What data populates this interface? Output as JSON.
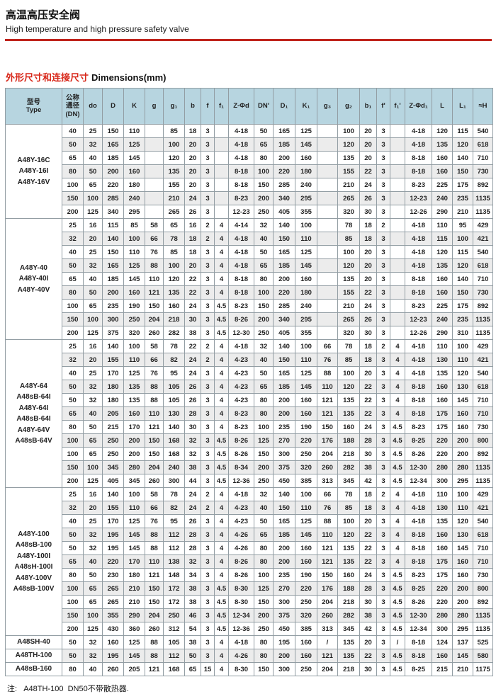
{
  "page": {
    "title_zh": "高温高压安全阀",
    "title_en": "High temperature and high pressure safety valve",
    "section_title_zh": "外形尺寸和连接尺寸",
    "section_title_en": "Dimensions(mm)",
    "footnote": "注:   A48TH-100  DN50不带散热器."
  },
  "colors": {
    "accent_red": "#c0241c",
    "section_red": "#d8281a",
    "header_bg": "#b7d5e0",
    "row_alt_bg": "#ececec",
    "border": "#929da3"
  },
  "table": {
    "headers": [
      "型号\nType",
      "公称\n通径\n(DN)",
      "do",
      "D",
      "K",
      "g",
      "g₁",
      "b",
      "f",
      "f₁",
      "Z-Φd",
      "DN'",
      "D₁",
      "K₁",
      "g₃",
      "g₂",
      "b₁",
      "f'",
      "f₁'",
      "Z-Φd₁",
      "L",
      "L₁",
      "≈H"
    ],
    "groups": [
      {
        "type_lines": [
          "A48Y-16C",
          "A48Y-16I",
          "A48Y-16V"
        ],
        "rows": [
          [
            "40",
            "25",
            "150",
            "110",
            "",
            "85",
            "18",
            "3",
            "",
            "4-18",
            "50",
            "165",
            "125",
            "",
            "100",
            "20",
            "3",
            "",
            "4-18",
            "120",
            "115",
            "540"
          ],
          [
            "50",
            "32",
            "165",
            "125",
            "",
            "100",
            "20",
            "3",
            "",
            "4-18",
            "65",
            "185",
            "145",
            "",
            "120",
            "20",
            "3",
            "",
            "4-18",
            "135",
            "120",
            "618"
          ],
          [
            "65",
            "40",
            "185",
            "145",
            "",
            "120",
            "20",
            "3",
            "",
            "4-18",
            "80",
            "200",
            "160",
            "",
            "135",
            "20",
            "3",
            "",
            "8-18",
            "160",
            "140",
            "710"
          ],
          [
            "80",
            "50",
            "200",
            "160",
            "",
            "135",
            "20",
            "3",
            "",
            "8-18",
            "100",
            "220",
            "180",
            "",
            "155",
            "22",
            "3",
            "",
            "8-18",
            "160",
            "150",
            "730"
          ],
          [
            "100",
            "65",
            "220",
            "180",
            "",
            "155",
            "20",
            "3",
            "",
            "8-18",
            "150",
            "285",
            "240",
            "",
            "210",
            "24",
            "3",
            "",
            "8-23",
            "225",
            "175",
            "892"
          ],
          [
            "150",
            "100",
            "285",
            "240",
            "",
            "210",
            "24",
            "3",
            "",
            "8-23",
            "200",
            "340",
            "295",
            "",
            "265",
            "26",
            "3",
            "",
            "12-23",
            "240",
            "235",
            "1135"
          ],
          [
            "200",
            "125",
            "340",
            "295",
            "",
            "265",
            "26",
            "3",
            "",
            "12-23",
            "250",
            "405",
            "355",
            "",
            "320",
            "30",
            "3",
            "",
            "12-26",
            "290",
            "210",
            "1135"
          ]
        ]
      },
      {
        "type_lines": [
          "A48Y-40",
          "A48Y-40I",
          "A48Y-40V"
        ],
        "rows": [
          [
            "25",
            "16",
            "115",
            "85",
            "58",
            "65",
            "16",
            "2",
            "4",
            "4-14",
            "32",
            "140",
            "100",
            "",
            "78",
            "18",
            "2",
            "",
            "4-18",
            "110",
            "95",
            "429"
          ],
          [
            "32",
            "20",
            "140",
            "100",
            "66",
            "78",
            "18",
            "2",
            "4",
            "4-18",
            "40",
            "150",
            "110",
            "",
            "85",
            "18",
            "3",
            "",
            "4-18",
            "115",
            "100",
            "421"
          ],
          [
            "40",
            "25",
            "150",
            "110",
            "76",
            "85",
            "18",
            "3",
            "4",
            "4-18",
            "50",
            "165",
            "125",
            "",
            "100",
            "20",
            "3",
            "",
            "4-18",
            "120",
            "115",
            "540"
          ],
          [
            "50",
            "32",
            "165",
            "125",
            "88",
            "100",
            "20",
            "3",
            "4",
            "4-18",
            "65",
            "185",
            "145",
            "",
            "120",
            "20",
            "3",
            "",
            "4-18",
            "135",
            "120",
            "618"
          ],
          [
            "65",
            "40",
            "185",
            "145",
            "110",
            "120",
            "22",
            "3",
            "4",
            "8-18",
            "80",
            "200",
            "160",
            "",
            "135",
            "20",
            "3",
            "",
            "8-18",
            "160",
            "140",
            "710"
          ],
          [
            "80",
            "50",
            "200",
            "160",
            "121",
            "135",
            "22",
            "3",
            "4",
            "8-18",
            "100",
            "220",
            "180",
            "",
            "155",
            "22",
            "3",
            "",
            "8-18",
            "160",
            "150",
            "730"
          ],
          [
            "100",
            "65",
            "235",
            "190",
            "150",
            "160",
            "24",
            "3",
            "4.5",
            "8-23",
            "150",
            "285",
            "240",
            "",
            "210",
            "24",
            "3",
            "",
            "8-23",
            "225",
            "175",
            "892"
          ],
          [
            "150",
            "100",
            "300",
            "250",
            "204",
            "218",
            "30",
            "3",
            "4.5",
            "8-26",
            "200",
            "340",
            "295",
            "",
            "265",
            "26",
            "3",
            "",
            "12-23",
            "240",
            "235",
            "1135"
          ],
          [
            "200",
            "125",
            "375",
            "320",
            "260",
            "282",
            "38",
            "3",
            "4.5",
            "12-30",
            "250",
            "405",
            "355",
            "",
            "320",
            "30",
            "3",
            "",
            "12-26",
            "290",
            "310",
            "1135"
          ]
        ]
      },
      {
        "type_lines": [
          "A48Y-64",
          "A48sB-64I",
          "A48Y-64I",
          "A48sB-64I",
          "A48Y-64V",
          "A48sB-64V"
        ],
        "rows": [
          [
            "25",
            "16",
            "140",
            "100",
            "58",
            "78",
            "22",
            "2",
            "4",
            "4-18",
            "32",
            "140",
            "100",
            "66",
            "78",
            "18",
            "2",
            "4",
            "4-18",
            "110",
            "100",
            "429"
          ],
          [
            "32",
            "20",
            "155",
            "110",
            "66",
            "82",
            "24",
            "2",
            "4",
            "4-23",
            "40",
            "150",
            "110",
            "76",
            "85",
            "18",
            "3",
            "4",
            "4-18",
            "130",
            "110",
            "421"
          ],
          [
            "40",
            "25",
            "170",
            "125",
            "76",
            "95",
            "24",
            "3",
            "4",
            "4-23",
            "50",
            "165",
            "125",
            "88",
            "100",
            "20",
            "3",
            "4",
            "4-18",
            "135",
            "120",
            "540"
          ],
          [
            "50",
            "32",
            "180",
            "135",
            "88",
            "105",
            "26",
            "3",
            "4",
            "4-23",
            "65",
            "185",
            "145",
            "110",
            "120",
            "22",
            "3",
            "4",
            "8-18",
            "160",
            "130",
            "618"
          ],
          [
            "50",
            "32",
            "180",
            "135",
            "88",
            "105",
            "26",
            "3",
            "4",
            "4-23",
            "80",
            "200",
            "160",
            "121",
            "135",
            "22",
            "3",
            "4",
            "8-18",
            "160",
            "145",
            "710"
          ],
          [
            "65",
            "40",
            "205",
            "160",
            "110",
            "130",
            "28",
            "3",
            "4",
            "8-23",
            "80",
            "200",
            "160",
            "121",
            "135",
            "22",
            "3",
            "4",
            "8-18",
            "175",
            "160",
            "710"
          ],
          [
            "80",
            "50",
            "215",
            "170",
            "121",
            "140",
            "30",
            "3",
            "4",
            "8-23",
            "100",
            "235",
            "190",
            "150",
            "160",
            "24",
            "3",
            "4.5",
            "8-23",
            "175",
            "160",
            "730"
          ],
          [
            "100",
            "65",
            "250",
            "200",
            "150",
            "168",
            "32",
            "3",
            "4.5",
            "8-26",
            "125",
            "270",
            "220",
            "176",
            "188",
            "28",
            "3",
            "4.5",
            "8-25",
            "220",
            "200",
            "800"
          ],
          [
            "100",
            "65",
            "250",
            "200",
            "150",
            "168",
            "32",
            "3",
            "4.5",
            "8-26",
            "150",
            "300",
            "250",
            "204",
            "218",
            "30",
            "3",
            "4.5",
            "8-26",
            "220",
            "200",
            "892"
          ],
          [
            "150",
            "100",
            "345",
            "280",
            "204",
            "240",
            "38",
            "3",
            "4.5",
            "8-34",
            "200",
            "375",
            "320",
            "260",
            "282",
            "38",
            "3",
            "4.5",
            "12-30",
            "280",
            "280",
            "1135"
          ],
          [
            "200",
            "125",
            "405",
            "345",
            "260",
            "300",
            "44",
            "3",
            "4.5",
            "12-36",
            "250",
            "450",
            "385",
            "313",
            "345",
            "42",
            "3",
            "4.5",
            "12-34",
            "300",
            "295",
            "1135"
          ]
        ]
      },
      {
        "type_lines": [
          "A48Y-100",
          "A48sB-100",
          "A48Y-100I",
          "A48sH-100I",
          "A48Y-100V",
          "A48sB-100V"
        ],
        "rows": [
          [
            "25",
            "16",
            "140",
            "100",
            "58",
            "78",
            "24",
            "2",
            "4",
            "4-18",
            "32",
            "140",
            "100",
            "66",
            "78",
            "18",
            "2",
            "4",
            "4-18",
            "110",
            "100",
            "429"
          ],
          [
            "32",
            "20",
            "155",
            "110",
            "66",
            "82",
            "24",
            "2",
            "4",
            "4-23",
            "40",
            "150",
            "110",
            "76",
            "85",
            "18",
            "3",
            "4",
            "4-18",
            "130",
            "110",
            "421"
          ],
          [
            "40",
            "25",
            "170",
            "125",
            "76",
            "95",
            "26",
            "3",
            "4",
            "4-23",
            "50",
            "165",
            "125",
            "88",
            "100",
            "20",
            "3",
            "4",
            "4-18",
            "135",
            "120",
            "540"
          ],
          [
            "50",
            "32",
            "195",
            "145",
            "88",
            "112",
            "28",
            "3",
            "4",
            "4-26",
            "65",
            "185",
            "145",
            "110",
            "120",
            "22",
            "3",
            "4",
            "8-18",
            "160",
            "130",
            "618"
          ],
          [
            "50",
            "32",
            "195",
            "145",
            "88",
            "112",
            "28",
            "3",
            "4",
            "4-26",
            "80",
            "200",
            "160",
            "121",
            "135",
            "22",
            "3",
            "4",
            "8-18",
            "160",
            "145",
            "710"
          ],
          [
            "65",
            "40",
            "220",
            "170",
            "110",
            "138",
            "32",
            "3",
            "4",
            "8-26",
            "80",
            "200",
            "160",
            "121",
            "135",
            "22",
            "3",
            "4",
            "8-18",
            "175",
            "160",
            "710"
          ],
          [
            "80",
            "50",
            "230",
            "180",
            "121",
            "148",
            "34",
            "3",
            "4",
            "8-26",
            "100",
            "235",
            "190",
            "150",
            "160",
            "24",
            "3",
            "4.5",
            "8-23",
            "175",
            "160",
            "730"
          ],
          [
            "100",
            "65",
            "265",
            "210",
            "150",
            "172",
            "38",
            "3",
            "4.5",
            "8-30",
            "125",
            "270",
            "220",
            "176",
            "188",
            "28",
            "3",
            "4.5",
            "8-25",
            "220",
            "200",
            "800"
          ],
          [
            "100",
            "65",
            "265",
            "210",
            "150",
            "172",
            "38",
            "3",
            "4.5",
            "8-30",
            "150",
            "300",
            "250",
            "204",
            "218",
            "30",
            "3",
            "4.5",
            "8-26",
            "220",
            "200",
            "892"
          ],
          [
            "150",
            "100",
            "355",
            "290",
            "204",
            "250",
            "46",
            "3",
            "4.5",
            "12-34",
            "200",
            "375",
            "320",
            "260",
            "282",
            "38",
            "3",
            "4.5",
            "12-30",
            "280",
            "280",
            "1135"
          ],
          [
            "200",
            "125",
            "430",
            "360",
            "260",
            "312",
            "54",
            "3",
            "4.5",
            "12-36",
            "250",
            "450",
            "385",
            "313",
            "345",
            "42",
            "3",
            "4.5",
            "12-34",
            "300",
            "295",
            "1135"
          ]
        ]
      },
      {
        "type_lines": [
          "A48SH-40"
        ],
        "rows": [
          [
            "50",
            "32",
            "160",
            "125",
            "88",
            "105",
            "38",
            "3",
            "4",
            "4-18",
            "80",
            "195",
            "160",
            "/",
            "135",
            "20",
            "3",
            "/",
            "8-18",
            "124",
            "137",
            "525"
          ]
        ]
      },
      {
        "type_lines": [
          "A48TH-100"
        ],
        "shade_offset": 1,
        "rows": [
          [
            "50",
            "32",
            "195",
            "145",
            "88",
            "112",
            "50",
            "3",
            "4",
            "4-26",
            "80",
            "200",
            "160",
            "121",
            "135",
            "22",
            "3",
            "4.5",
            "8-18",
            "160",
            "145",
            "580"
          ]
        ]
      },
      {
        "type_lines": [
          "A48sB-160"
        ],
        "rows": [
          [
            "80",
            "40",
            "260",
            "205",
            "121",
            "168",
            "65",
            "15",
            "4",
            "8-30",
            "150",
            "300",
            "250",
            "204",
            "218",
            "30",
            "3",
            "4.5",
            "8-25",
            "215",
            "210",
            "1175"
          ]
        ]
      }
    ]
  }
}
